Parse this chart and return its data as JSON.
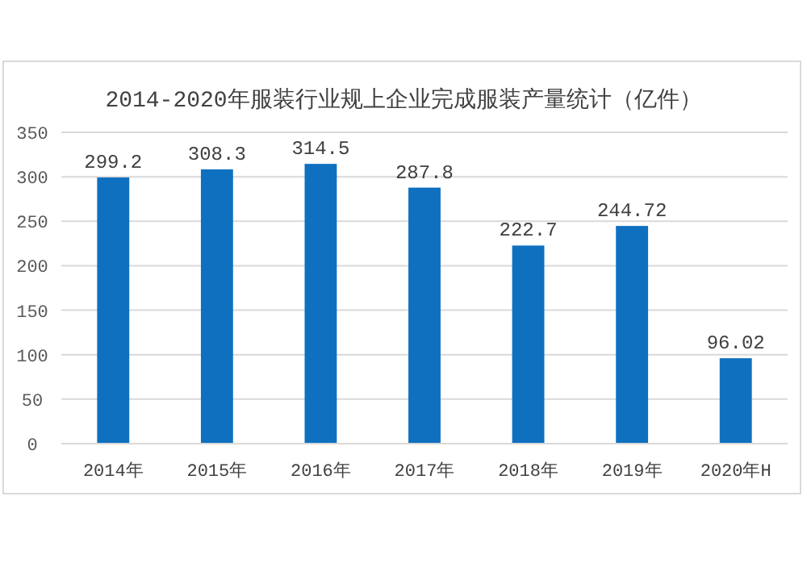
{
  "chart_data": {
    "type": "bar",
    "title": "2014-2020年服装行业规上企业完成服装产量统计（亿件）",
    "categories": [
      "2014年",
      "2015年",
      "2016年",
      "2017年",
      "2018年",
      "2019年",
      "2020年H"
    ],
    "values": [
      299.2,
      308.3,
      314.5,
      287.8,
      222.7,
      244.72,
      96.02
    ],
    "value_labels": [
      "299.2",
      "308.3",
      "314.5",
      "287.8",
      "222.7",
      "244.72",
      "96.02"
    ],
    "color": "#0f70c0",
    "ylim": [
      0,
      350
    ],
    "yticks": [
      0,
      50,
      100,
      150,
      200,
      250,
      300,
      350
    ],
    "grid": "y"
  }
}
